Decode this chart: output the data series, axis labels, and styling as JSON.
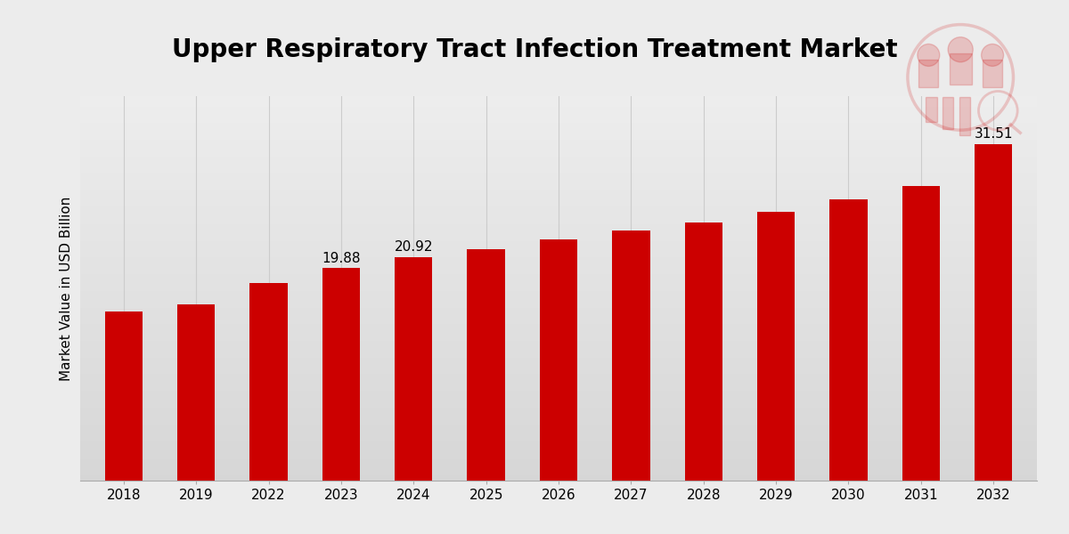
{
  "title": "Upper Respiratory Tract Infection Treatment Market",
  "ylabel": "Market Value in USD Billion",
  "categories": [
    "2018",
    "2019",
    "2022",
    "2023",
    "2024",
    "2025",
    "2026",
    "2027",
    "2028",
    "2029",
    "2030",
    "2031",
    "2032"
  ],
  "values": [
    15.8,
    16.5,
    18.5,
    19.88,
    20.92,
    21.7,
    22.6,
    23.4,
    24.2,
    25.2,
    26.3,
    27.6,
    31.51
  ],
  "bar_color": "#CC0000",
  "labeled_bars": {
    "2023": "19.88",
    "2024": "20.92",
    "2032": "31.51"
  },
  "ylim": [
    0,
    36
  ],
  "grid_color": "#cccccc",
  "title_fontsize": 20,
  "ylabel_fontsize": 11,
  "tick_fontsize": 11,
  "bar_label_fontsize": 11,
  "bg_light": 0.93,
  "bg_dark": 0.84,
  "footer_color": "#CC0000",
  "bar_width": 0.52
}
